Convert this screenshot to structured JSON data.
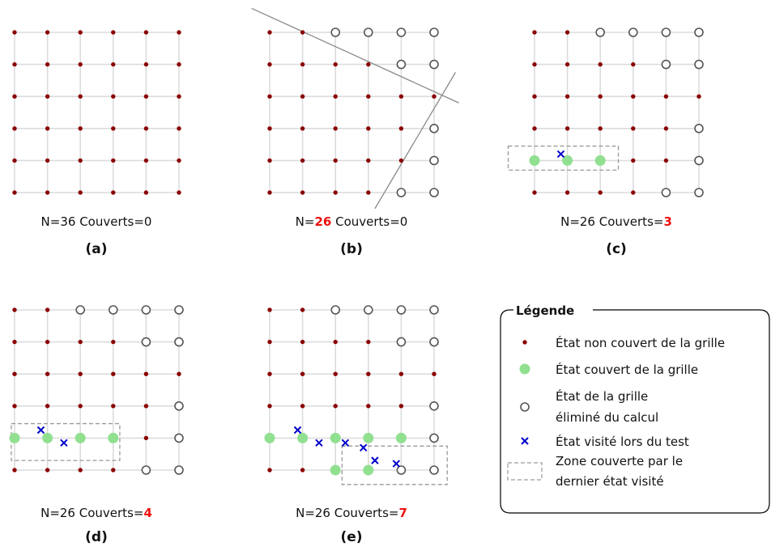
{
  "colors": {
    "grid_line": "#dcdcdc",
    "uncovered": "#8b0000",
    "covered": "#90e090",
    "eliminated_stroke": "#555555",
    "visited": "#0000cc",
    "zone": "#9a9a9a",
    "highlight": "#ee1111",
    "legend_border": "#000000"
  },
  "panels": [
    {
      "id": "a",
      "label": "(a)",
      "caption": {
        "n_prefix": "N=",
        "n_value": "36",
        "cov_prefix": " Couverts=",
        "cov_value": "0",
        "highlight": "none"
      },
      "eliminated": [],
      "covered": [],
      "visited": [],
      "zone": null,
      "cut_lines": []
    },
    {
      "id": "b",
      "label": "(b)",
      "caption": {
        "n_prefix": "N=",
        "n_value": "26",
        "cov_prefix": " Couverts=",
        "cov_value": "0",
        "highlight": "n"
      },
      "eliminated": [
        [
          2,
          0
        ],
        [
          3,
          0
        ],
        [
          4,
          0
        ],
        [
          5,
          0
        ],
        [
          4,
          1
        ],
        [
          5,
          1
        ],
        [
          5,
          3
        ],
        [
          5,
          4
        ],
        [
          4,
          5
        ],
        [
          5,
          5
        ]
      ],
      "covered": [],
      "visited": [],
      "zone": null,
      "cut_lines": [
        [
          [
            -0.55,
            -0.75
          ],
          [
            5.75,
            2.2
          ]
        ],
        [
          [
            3.2,
            5.5
          ],
          [
            5.65,
            1.25
          ]
        ]
      ]
    },
    {
      "id": "c",
      "label": "(c)",
      "caption": {
        "n_prefix": "N=",
        "n_value": "26",
        "cov_prefix": " Couverts=",
        "cov_value": "3",
        "highlight": "cov"
      },
      "eliminated": [
        [
          2,
          0
        ],
        [
          3,
          0
        ],
        [
          4,
          0
        ],
        [
          5,
          0
        ],
        [
          4,
          1
        ],
        [
          5,
          1
        ],
        [
          5,
          3
        ],
        [
          5,
          4
        ],
        [
          4,
          5
        ],
        [
          5,
          5
        ]
      ],
      "covered": [
        [
          0,
          4
        ],
        [
          1,
          4
        ],
        [
          2,
          4
        ]
      ],
      "visited": [
        [
          0.8,
          3.8
        ]
      ],
      "zone": [
        [
          -0.8,
          3.55
        ],
        [
          2.55,
          4.3
        ]
      ],
      "cut_lines": []
    },
    {
      "id": "d",
      "label": "(d)",
      "caption": {
        "n_prefix": "N=",
        "n_value": "26",
        "cov_prefix": " Couverts=",
        "cov_value": "4",
        "highlight": "cov"
      },
      "eliminated": [
        [
          2,
          0
        ],
        [
          3,
          0
        ],
        [
          4,
          0
        ],
        [
          5,
          0
        ],
        [
          4,
          1
        ],
        [
          5,
          1
        ],
        [
          5,
          3
        ],
        [
          5,
          4
        ],
        [
          4,
          5
        ],
        [
          5,
          5
        ]
      ],
      "covered": [
        [
          0,
          4
        ],
        [
          1,
          4
        ],
        [
          2,
          4
        ],
        [
          3,
          4
        ]
      ],
      "visited": [
        [
          0.8,
          3.75
        ],
        [
          1.5,
          4.15
        ]
      ],
      "zone": [
        [
          -0.1,
          3.55
        ],
        [
          3.2,
          4.7
        ]
      ],
      "cut_lines": []
    },
    {
      "id": "e",
      "label": "(e)",
      "caption": {
        "n_prefix": "N=",
        "n_value": "26",
        "cov_prefix": " Couverts=",
        "cov_value": "7",
        "highlight": "cov"
      },
      "eliminated": [
        [
          2,
          0
        ],
        [
          3,
          0
        ],
        [
          4,
          0
        ],
        [
          5,
          0
        ],
        [
          4,
          1
        ],
        [
          5,
          1
        ],
        [
          5,
          3
        ],
        [
          5,
          4
        ],
        [
          4,
          5
        ],
        [
          5,
          5
        ]
      ],
      "covered": [
        [
          0,
          4
        ],
        [
          1,
          4
        ],
        [
          2,
          4
        ],
        [
          3,
          4
        ],
        [
          4,
          4
        ],
        [
          2,
          5
        ],
        [
          3,
          5
        ]
      ],
      "visited": [
        [
          0.85,
          3.75
        ],
        [
          1.5,
          4.15
        ],
        [
          2.3,
          4.15
        ],
        [
          2.85,
          4.3
        ],
        [
          3.2,
          4.7
        ],
        [
          3.85,
          4.8
        ]
      ],
      "zone": [
        [
          2.2,
          4.25
        ],
        [
          5.4,
          5.45
        ]
      ],
      "cut_lines": []
    }
  ],
  "legend": {
    "title": "Légende",
    "items": [
      {
        "symbol": "uncovered",
        "lines": [
          "État non couvert de la grille"
        ]
      },
      {
        "symbol": "covered",
        "lines": [
          "État couvert de la grille"
        ]
      },
      {
        "symbol": "eliminated",
        "lines": [
          "État de la grille",
          "éliminé du calcul"
        ]
      },
      {
        "symbol": "visited",
        "lines": [
          "État visité lors du test"
        ]
      },
      {
        "symbol": "zone",
        "lines": [
          "Zone couverte par le",
          "dernier état visité"
        ]
      }
    ]
  }
}
